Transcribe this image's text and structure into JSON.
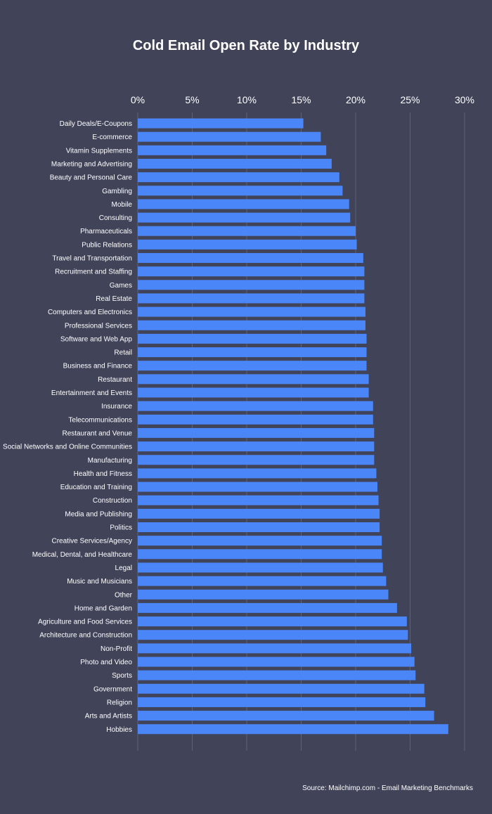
{
  "title": "Cold Email Open Rate by Industry",
  "source": "Source: Mailchimp.com - Email Marketing Benchmarks",
  "colors": {
    "background": "#414459",
    "bar": "#4a86f7",
    "grid": "#5f6275",
    "text": "#ffffff"
  },
  "chart_data": {
    "type": "bar",
    "orientation": "horizontal",
    "title": "Cold Email Open Rate by Industry",
    "xlim": [
      0,
      30
    ],
    "xticks": [
      "0%",
      "5%",
      "10%",
      "15%",
      "20%",
      "25%",
      "30%"
    ],
    "x_axis_position": "top",
    "grid": true,
    "categories": [
      "Daily Deals/E-Coupons",
      "E-commerce",
      "Vitamin Supplements",
      "Marketing and Advertising",
      "Beauty and Personal Care",
      "Gambling",
      "Mobile",
      "Consulting",
      "Pharmaceuticals",
      "Public Relations",
      "Travel and Transportation",
      "Recruitment and Staffing",
      "Games",
      "Real Estate",
      "Computers and Electronics",
      "Professional Services",
      "Software and Web App",
      "Retail",
      "Business and Finance",
      "Restaurant",
      "Entertainment and Events",
      "Insurance",
      "Telecommunications",
      "Restaurant and Venue",
      "Social Networks and Online Communities",
      "Manufacturing",
      "Health and Fitness",
      "Education and Training",
      "Construction",
      "Media and Publishing",
      "Politics",
      "Creative Services/Agency",
      "Medical, Dental, and Healthcare",
      "Legal",
      "Music and Musicians",
      "Other",
      "Home and Garden",
      "Agriculture and Food Services",
      "Architecture and Construction",
      "Non-Profit",
      "Photo and Video",
      "Sports",
      "Government",
      "Religion",
      "Arts and Artists",
      "Hobbies"
    ],
    "values": [
      15.2,
      16.8,
      17.3,
      17.8,
      18.5,
      18.8,
      19.4,
      19.5,
      20.0,
      20.1,
      20.7,
      20.8,
      20.8,
      20.8,
      20.9,
      20.9,
      21.0,
      21.0,
      21.0,
      21.2,
      21.2,
      21.6,
      21.6,
      21.7,
      21.7,
      21.7,
      21.9,
      22.0,
      22.1,
      22.2,
      22.2,
      22.4,
      22.4,
      22.5,
      22.8,
      23.0,
      23.8,
      24.7,
      24.8,
      25.1,
      25.4,
      25.5,
      26.3,
      26.4,
      27.2,
      28.5
    ]
  }
}
